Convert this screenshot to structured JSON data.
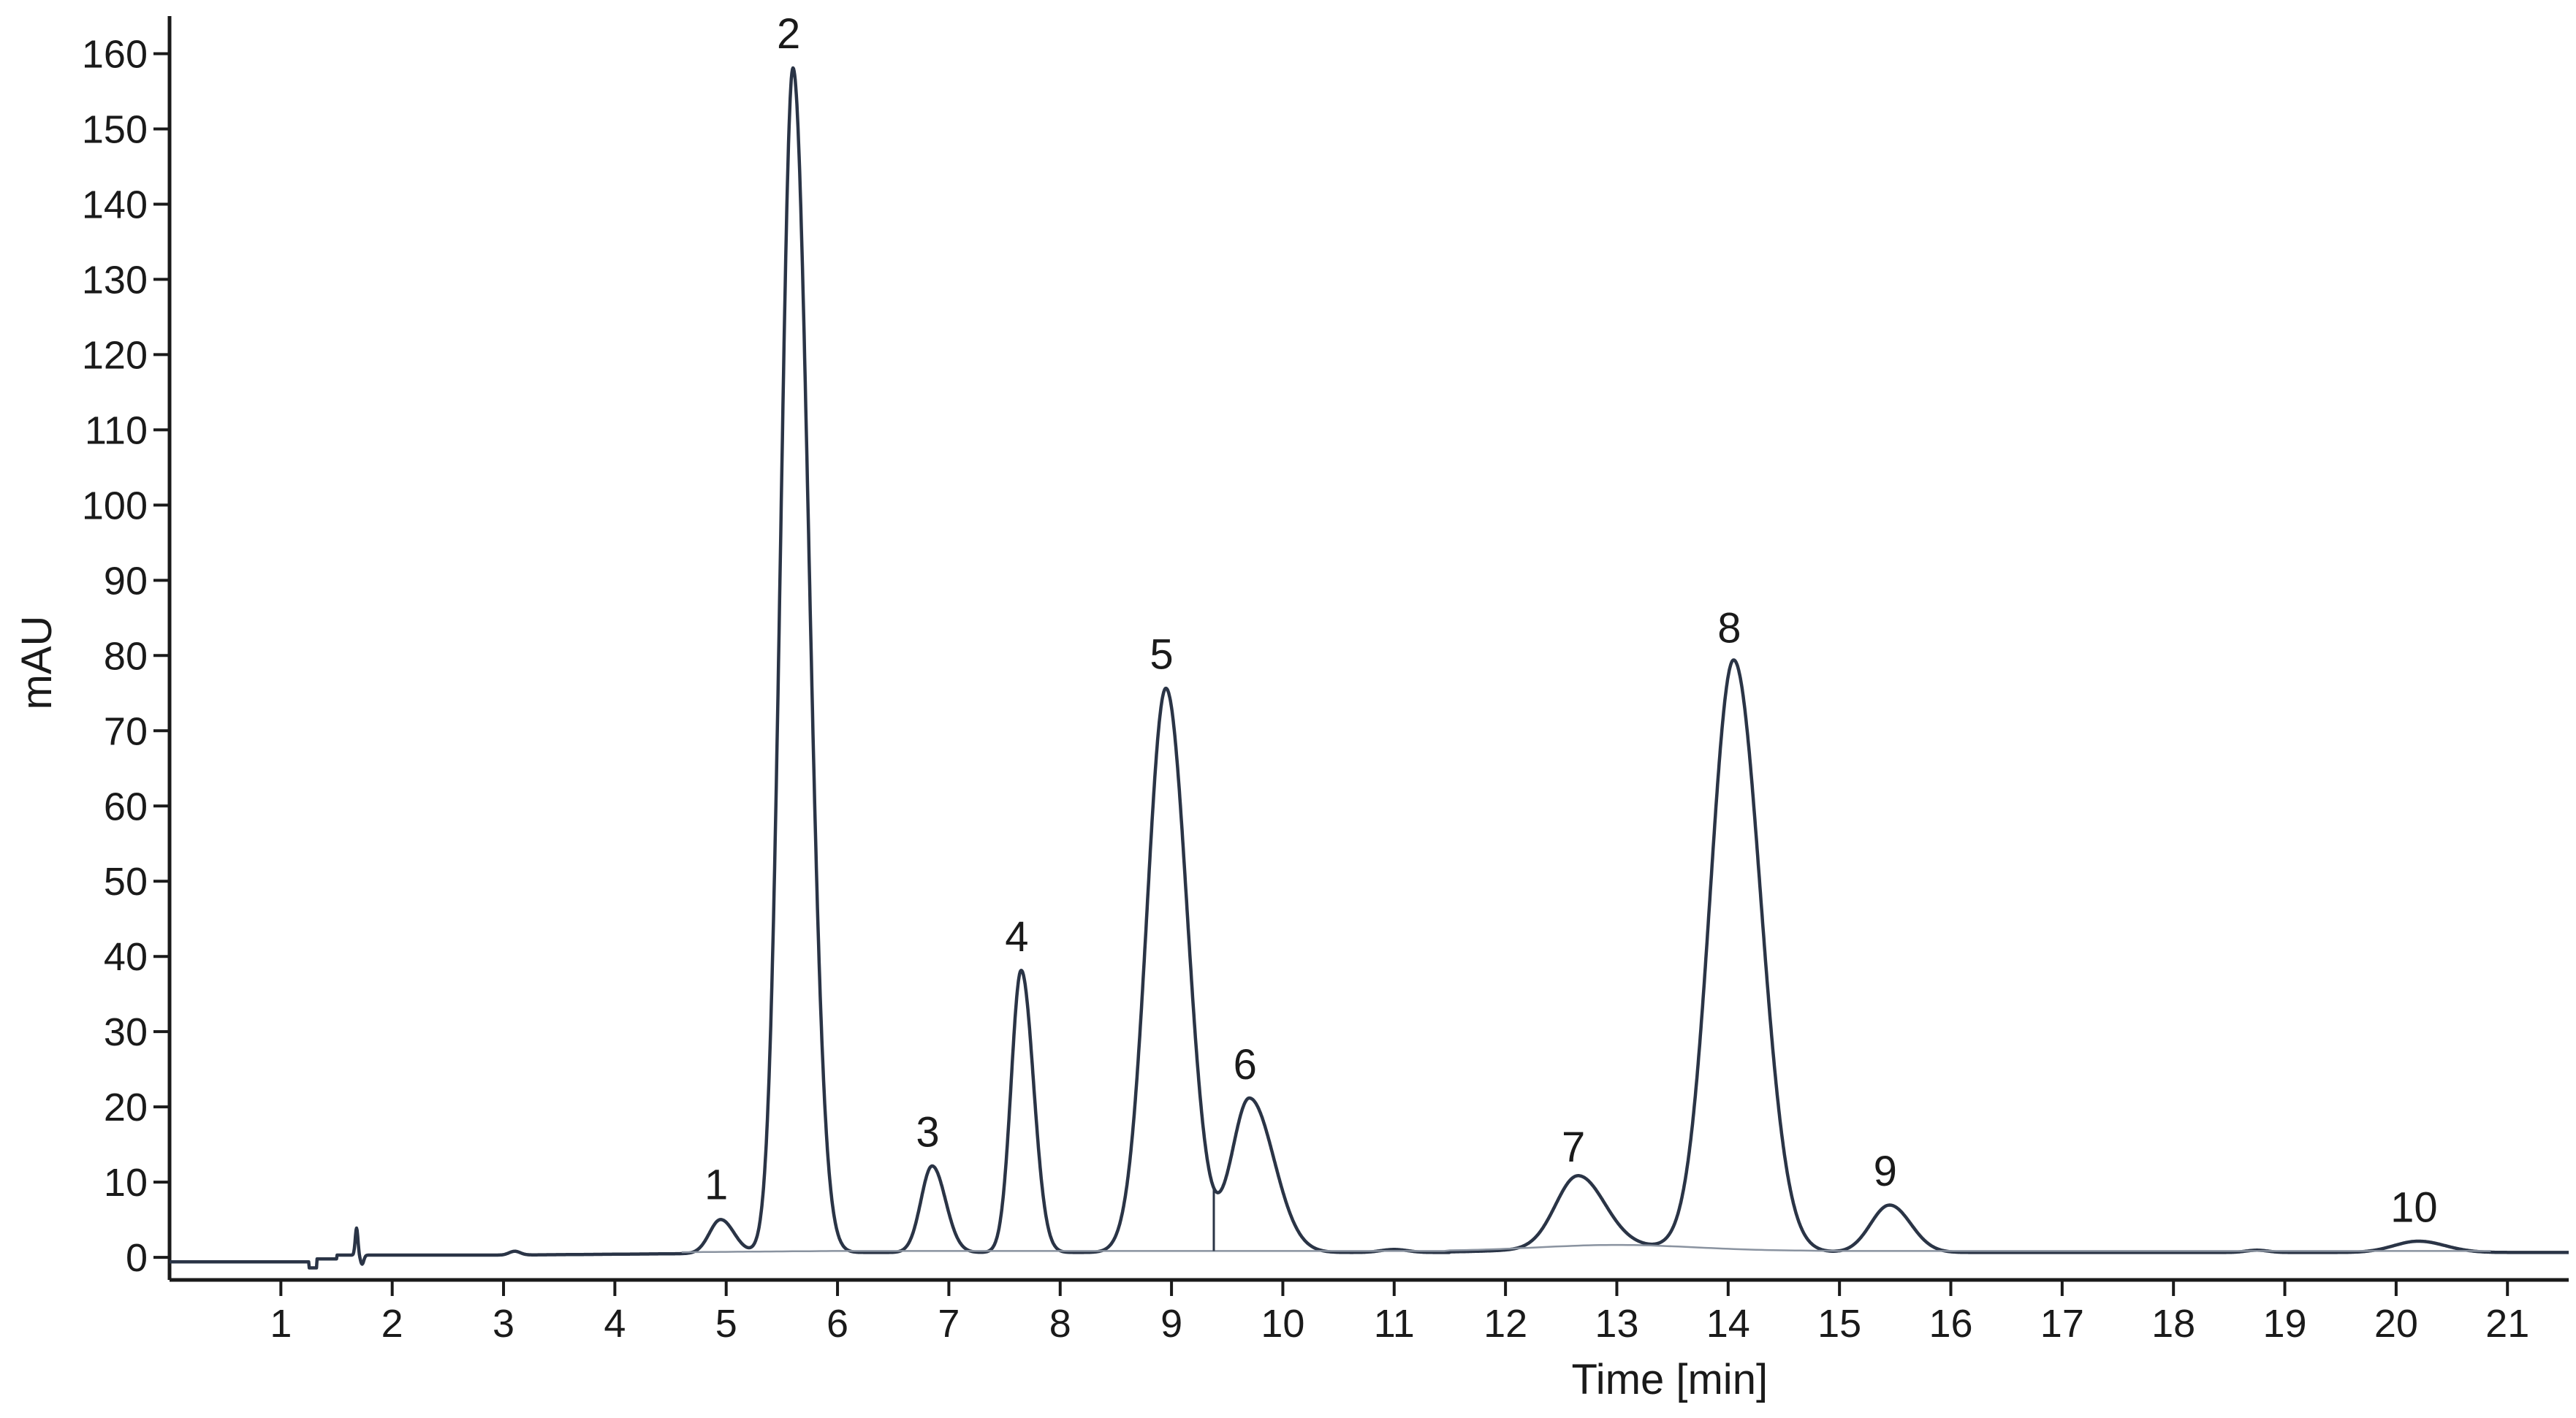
{
  "chart_data": {
    "type": "line",
    "title": "",
    "xlabel": "Time [min]",
    "ylabel": "mAU",
    "xlim": [
      0,
      21.55
    ],
    "ylim": [
      -3,
      165
    ],
    "x_ticks": [
      1,
      2,
      3,
      4,
      5,
      6,
      7,
      8,
      9,
      10,
      11,
      12,
      13,
      14,
      15,
      16,
      17,
      18,
      19,
      20,
      21
    ],
    "y_ticks": [
      0,
      10,
      20,
      30,
      40,
      50,
      60,
      70,
      80,
      90,
      100,
      110,
      120,
      130,
      140,
      150,
      160
    ],
    "grid": false,
    "series": [
      {
        "peaks": [
          {
            "label": "1",
            "time": 4.95,
            "height": 5
          },
          {
            "label": "2",
            "time": 5.6,
            "height": 158
          },
          {
            "label": "3",
            "time": 6.85,
            "height": 12
          },
          {
            "label": "4",
            "time": 7.65,
            "height": 38
          },
          {
            "label": "5",
            "time": 8.95,
            "height": 75.5
          },
          {
            "label": "6",
            "time": 9.7,
            "height": 21
          },
          {
            "label": "7",
            "time": 12.65,
            "height": 10
          },
          {
            "label": "8",
            "time": 14.05,
            "height": 79
          },
          {
            "label": "9",
            "time": 15.45,
            "height": 6.8
          },
          {
            "label": "10",
            "time": 20.2,
            "height": 2
          }
        ]
      }
    ]
  }
}
